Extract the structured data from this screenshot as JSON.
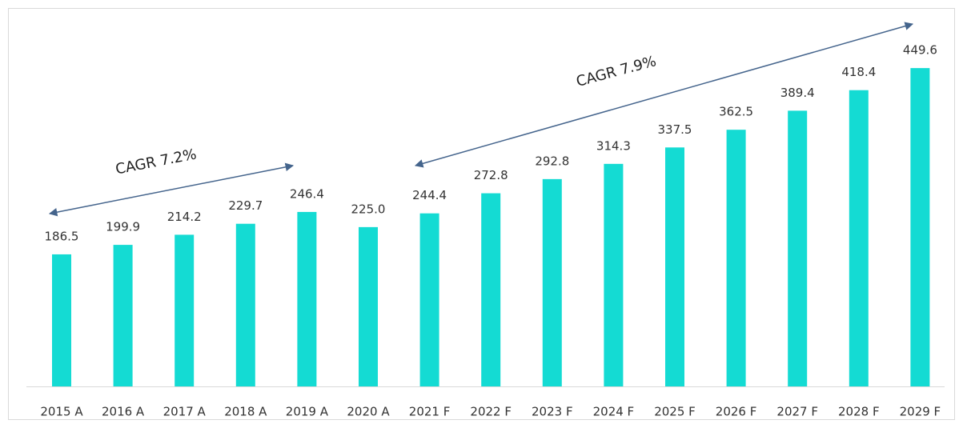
{
  "chart_data": {
    "type": "bar",
    "categories": [
      "2015 A",
      "2016 A",
      "2017 A",
      "2018 A",
      "2019 A",
      "2020 A",
      "2021 F",
      "2022 F",
      "2023 F",
      "2024 F",
      "2025 F",
      "2026 F",
      "2027 F",
      "2028 F",
      "2029 F"
    ],
    "values": [
      186.5,
      199.9,
      214.2,
      229.7,
      246.4,
      225.0,
      244.4,
      272.8,
      292.8,
      314.3,
      337.5,
      362.5,
      389.4,
      418.4,
      449.6
    ],
    "value_labels": [
      "186.5",
      "199.9",
      "214.2",
      "229.7",
      "246.4",
      "225.0",
      "244.4",
      "272.8",
      "292.8",
      "314.3",
      "337.5",
      "362.5",
      "389.4",
      "418.4",
      "449.6"
    ],
    "color": "#14dbd3",
    "annotations": [
      "CAGR 7.2%",
      "CAGR 7.9%"
    ]
  }
}
